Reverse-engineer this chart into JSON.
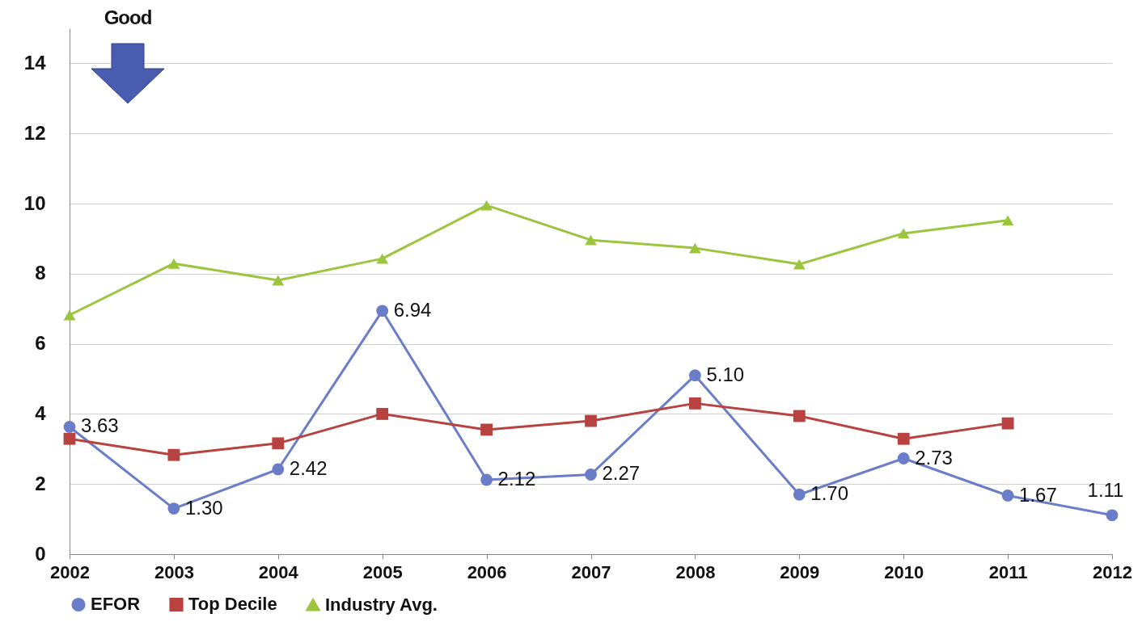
{
  "chart_data": {
    "type": "line",
    "categories": [
      "2002",
      "2003",
      "2004",
      "2005",
      "2006",
      "2007",
      "2008",
      "2009",
      "2010",
      "2011",
      "2012"
    ],
    "series": [
      {
        "name": "EFOR",
        "color": "#6a7dc9",
        "marker": "circle",
        "values": [
          3.63,
          1.3,
          2.42,
          6.94,
          2.12,
          2.27,
          5.1,
          1.7,
          2.73,
          1.67,
          1.11
        ],
        "value_labels": [
          "3.63",
          "1.30",
          "2.42",
          "6.94",
          "2.12",
          "2.27",
          "5.10",
          "1.70",
          "2.73",
          "1.67",
          "1.11"
        ]
      },
      {
        "name": "Top Decile",
        "color": "#b8423f",
        "marker": "square",
        "values": [
          3.29,
          2.83,
          3.16,
          4.0,
          3.55,
          3.8,
          4.3,
          3.94,
          3.29,
          3.73,
          null
        ]
      },
      {
        "name": "Industry Avg.",
        "color": "#9bc53d",
        "marker": "triangle",
        "values": [
          6.82,
          8.29,
          7.81,
          8.43,
          9.95,
          8.96,
          8.73,
          8.27,
          9.15,
          9.52,
          null
        ]
      }
    ],
    "ylim": [
      0,
      15
    ],
    "yticks": [
      0,
      2,
      4,
      6,
      8,
      10,
      12,
      14
    ],
    "grid": "y",
    "legend": "bottom",
    "annotations": [
      "Good"
    ]
  }
}
